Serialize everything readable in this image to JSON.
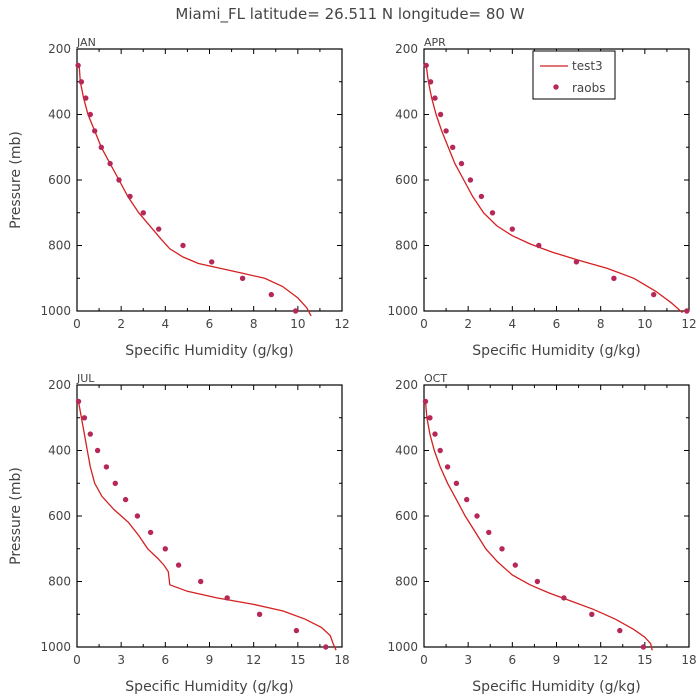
{
  "title": "Miami_FL   latitude= 26.511 N longitude= 80 W",
  "legend": {
    "model_label": "test3",
    "obs_label": "raobs"
  },
  "colors": {
    "model": "#d42020",
    "obs": "#b52858"
  },
  "chart_data": [
    {
      "type": "line",
      "panel": "JAN",
      "xlabel": "Specific Humidity (g/kg)",
      "ylabel": "Pressure (mb)",
      "xlim": [
        0,
        12
      ],
      "ylim": [
        1000,
        200
      ],
      "xticks": [
        0,
        2,
        4,
        6,
        8,
        10,
        12
      ],
      "yticks": [
        200,
        400,
        600,
        800,
        1000
      ],
      "series": [
        {
          "name": "test3",
          "style": "line",
          "x": [
            0.1,
            0.15,
            0.3,
            0.5,
            0.8,
            1.1,
            1.5,
            1.9,
            2.3,
            2.8,
            3.3,
            3.8,
            4.2,
            4.8,
            5.5,
            6.5,
            7.5,
            8.5,
            9.3,
            10.0,
            10.4,
            10.6
          ],
          "y": [
            250,
            300,
            350,
            400,
            450,
            500,
            550,
            600,
            650,
            700,
            740,
            780,
            810,
            835,
            855,
            870,
            885,
            900,
            925,
            960,
            990,
            1015
          ]
        },
        {
          "name": "raobs",
          "style": "points",
          "x": [
            0.05,
            0.2,
            0.4,
            0.6,
            0.8,
            1.1,
            1.5,
            1.9,
            2.4,
            3.0,
            3.7,
            4.8,
            6.1,
            7.5,
            8.8,
            9.9
          ],
          "y": [
            250,
            300,
            350,
            400,
            450,
            500,
            550,
            600,
            650,
            700,
            750,
            800,
            850,
            900,
            950,
            1000
          ]
        }
      ]
    },
    {
      "type": "line",
      "panel": "APR",
      "xlabel": "Specific Humidity (g/kg)",
      "ylabel": "",
      "xlim": [
        0,
        12
      ],
      "ylim": [
        1000,
        200
      ],
      "xticks": [
        0,
        2,
        4,
        6,
        8,
        10,
        12
      ],
      "yticks": [
        200,
        400,
        600,
        800,
        1000
      ],
      "series": [
        {
          "name": "test3",
          "style": "line",
          "x": [
            0.1,
            0.2,
            0.35,
            0.55,
            0.8,
            1.1,
            1.4,
            1.8,
            2.2,
            2.7,
            3.3,
            4.0,
            4.8,
            5.8,
            7.0,
            8.3,
            9.5,
            10.5,
            11.2,
            11.7
          ],
          "y": [
            250,
            300,
            350,
            400,
            450,
            500,
            550,
            600,
            650,
            700,
            740,
            770,
            795,
            820,
            845,
            870,
            900,
            940,
            975,
            1005
          ]
        },
        {
          "name": "raobs",
          "style": "points",
          "x": [
            0.1,
            0.3,
            0.5,
            0.75,
            1.0,
            1.3,
            1.7,
            2.1,
            2.6,
            3.1,
            4.0,
            5.2,
            6.9,
            8.6,
            10.4,
            11.9
          ],
          "y": [
            250,
            300,
            350,
            400,
            450,
            500,
            550,
            600,
            650,
            700,
            750,
            800,
            850,
            900,
            950,
            1000
          ]
        }
      ]
    },
    {
      "type": "line",
      "panel": "JUL",
      "xlabel": "Specific Humidity (g/kg)",
      "ylabel": "Pressure (mb)",
      "xlim": [
        0,
        18
      ],
      "ylim": [
        1000,
        200
      ],
      "xticks": [
        0,
        3,
        6,
        9,
        12,
        15,
        18
      ],
      "yticks": [
        200,
        400,
        600,
        800,
        1000
      ],
      "series": [
        {
          "name": "test3",
          "style": "line",
          "x": [
            0.1,
            0.3,
            0.5,
            0.7,
            0.9,
            1.2,
            1.7,
            2.5,
            3.5,
            4.2,
            4.8,
            5.5,
            5.9,
            6.2,
            6.3,
            7.5,
            9.5,
            12,
            14,
            15.5,
            16.6,
            17.2,
            17.4,
            17.6
          ],
          "y": [
            250,
            300,
            350,
            400,
            450,
            500,
            540,
            580,
            620,
            660,
            700,
            730,
            750,
            770,
            810,
            830,
            850,
            870,
            890,
            915,
            940,
            965,
            990,
            1010
          ]
        },
        {
          "name": "raobs",
          "style": "points",
          "x": [
            0.1,
            0.5,
            0.9,
            1.4,
            2.0,
            2.6,
            3.3,
            4.1,
            5.0,
            6.0,
            6.9,
            8.4,
            10.2,
            12.4,
            14.9,
            16.9
          ],
          "y": [
            250,
            300,
            350,
            400,
            450,
            500,
            550,
            600,
            650,
            700,
            750,
            800,
            850,
            900,
            950,
            1000
          ]
        }
      ]
    },
    {
      "type": "line",
      "panel": "OCT",
      "xlabel": "Specific Humidity (g/kg)",
      "ylabel": "",
      "xlim": [
        0,
        18
      ],
      "ylim": [
        1000,
        200
      ],
      "xticks": [
        0,
        3,
        6,
        9,
        12,
        15,
        18
      ],
      "yticks": [
        200,
        400,
        600,
        800,
        1000
      ],
      "series": [
        {
          "name": "test3",
          "style": "line",
          "x": [
            0.1,
            0.2,
            0.4,
            0.7,
            1.1,
            1.6,
            2.2,
            2.8,
            3.5,
            4.2,
            5.0,
            6.0,
            7.2,
            8.5,
            10.0,
            11.5,
            13.0,
            14.2,
            15.0,
            15.4,
            15.5
          ],
          "y": [
            250,
            300,
            350,
            400,
            450,
            500,
            550,
            600,
            650,
            700,
            740,
            780,
            810,
            835,
            860,
            885,
            915,
            945,
            970,
            990,
            1010
          ]
        },
        {
          "name": "raobs",
          "style": "points",
          "x": [
            0.1,
            0.4,
            0.75,
            1.1,
            1.6,
            2.2,
            2.9,
            3.6,
            4.4,
            5.3,
            6.2,
            7.7,
            9.5,
            11.4,
            13.3,
            14.9
          ],
          "y": [
            250,
            300,
            350,
            400,
            450,
            500,
            550,
            600,
            650,
            700,
            750,
            800,
            850,
            900,
            950,
            1000
          ]
        }
      ]
    }
  ]
}
